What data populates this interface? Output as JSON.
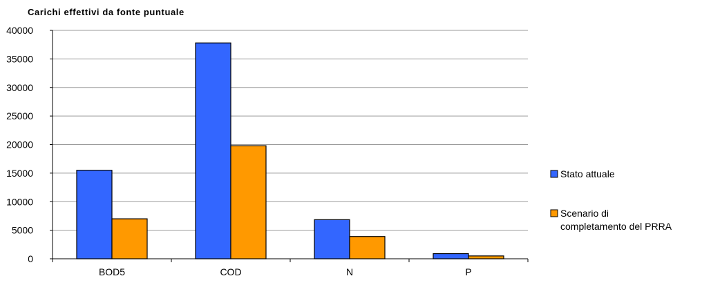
{
  "chart_data": {
    "type": "bar",
    "title": "Carichi effettivi da fonte puntuale",
    "xlabel": "",
    "ylabel": "",
    "categories": [
      "BOD5",
      "COD",
      "N",
      "P"
    ],
    "series": [
      {
        "name": "Stato attuale",
        "color": "#3366ff",
        "values": [
          15500,
          37800,
          6850,
          900
        ]
      },
      {
        "name": "Scenario di completamento del PRRA",
        "color": "#ff9900",
        "values": [
          7000,
          19800,
          3900,
          500
        ]
      }
    ],
    "ylim": [
      0,
      40000
    ],
    "yticks": [
      0,
      5000,
      10000,
      15000,
      20000,
      25000,
      30000,
      35000,
      40000
    ],
    "grid": "horizontal",
    "legend_position": "right"
  },
  "legend": {
    "items": [
      {
        "lines": [
          "Stato attuale"
        ],
        "color": "#3366ff"
      },
      {
        "lines": [
          "Scenario di",
          "completamento del PRRA"
        ],
        "color": "#ff9900"
      }
    ]
  }
}
